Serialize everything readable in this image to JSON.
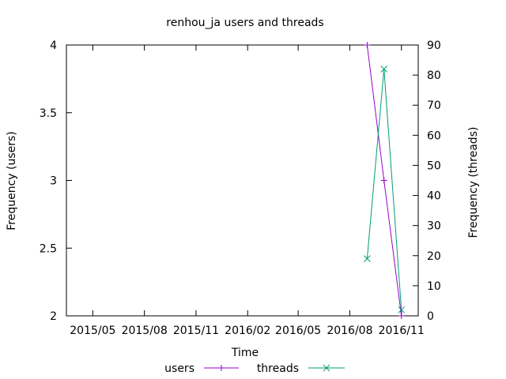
{
  "chart_data": {
    "type": "line",
    "title": "renhou_ja users and threads",
    "xlabel": "Time",
    "ylabel": "Frequency (users)",
    "y2label": "Frequency (threads)",
    "x_ticks": [
      "2015/05",
      "2015/08",
      "2015/11",
      "2016/02",
      "2016/05",
      "2016/08",
      "2016/11"
    ],
    "xlim": [
      "2015-03-15",
      "2016-12-01"
    ],
    "ylim": [
      2,
      4
    ],
    "y_ticks": [
      "2",
      "2.5",
      "3",
      "3.5",
      "4"
    ],
    "y2lim": [
      0,
      90
    ],
    "y2_ticks": [
      "0",
      "10",
      "20",
      "30",
      "40",
      "50",
      "60",
      "70",
      "80",
      "90"
    ],
    "grid": false,
    "legend_position": "bottom",
    "series": [
      {
        "name": "users",
        "axis": "left",
        "color": "#9400d3",
        "marker": "plus",
        "x": [
          "2016-09-01",
          "2016-10-01",
          "2016-11-01"
        ],
        "values": [
          4,
          3,
          2
        ]
      },
      {
        "name": "threads",
        "axis": "right",
        "color": "#009e73",
        "marker": "cross",
        "x": [
          "2016-09-01",
          "2016-10-01",
          "2016-11-01"
        ],
        "values": [
          19,
          82,
          2
        ]
      }
    ]
  }
}
